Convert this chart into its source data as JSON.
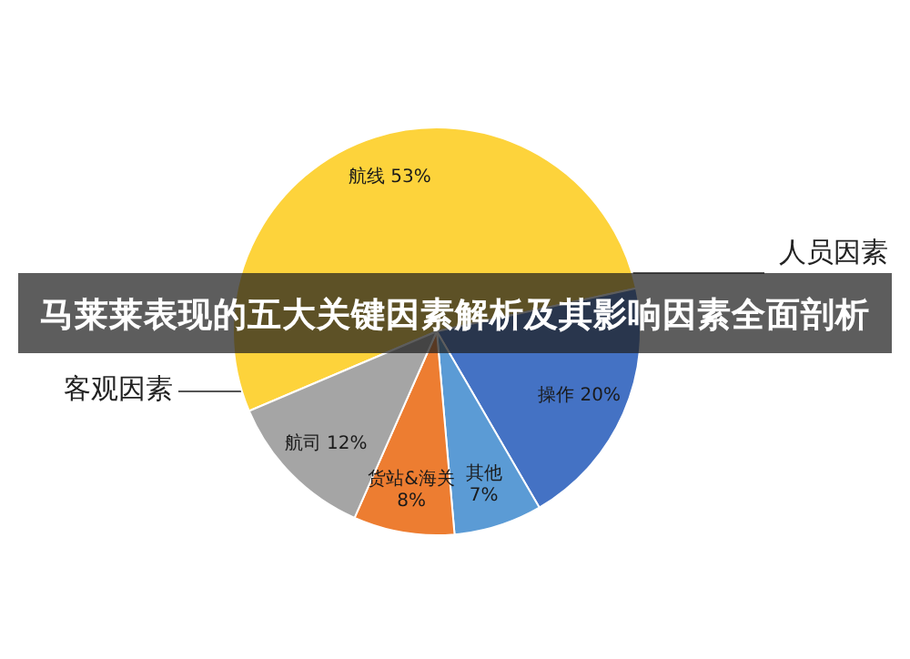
{
  "chart_data": {
    "type": "pie",
    "title": "马莱莱表现的五大关键因素解析及其影响因素全面剖析",
    "categories": [
      "航线",
      "操作",
      "其他",
      "货站&海关",
      "航司"
    ],
    "values": [
      53,
      20,
      7,
      8,
      12
    ],
    "colors": [
      "#fdd33b",
      "#4472c4",
      "#5b9bd5",
      "#ed7d31",
      "#a5a5a5"
    ],
    "value_labels": [
      "53%",
      "20%",
      "7%",
      "8%",
      "12%"
    ],
    "annotations": [
      "人员因素",
      "客观因素"
    ]
  }
}
